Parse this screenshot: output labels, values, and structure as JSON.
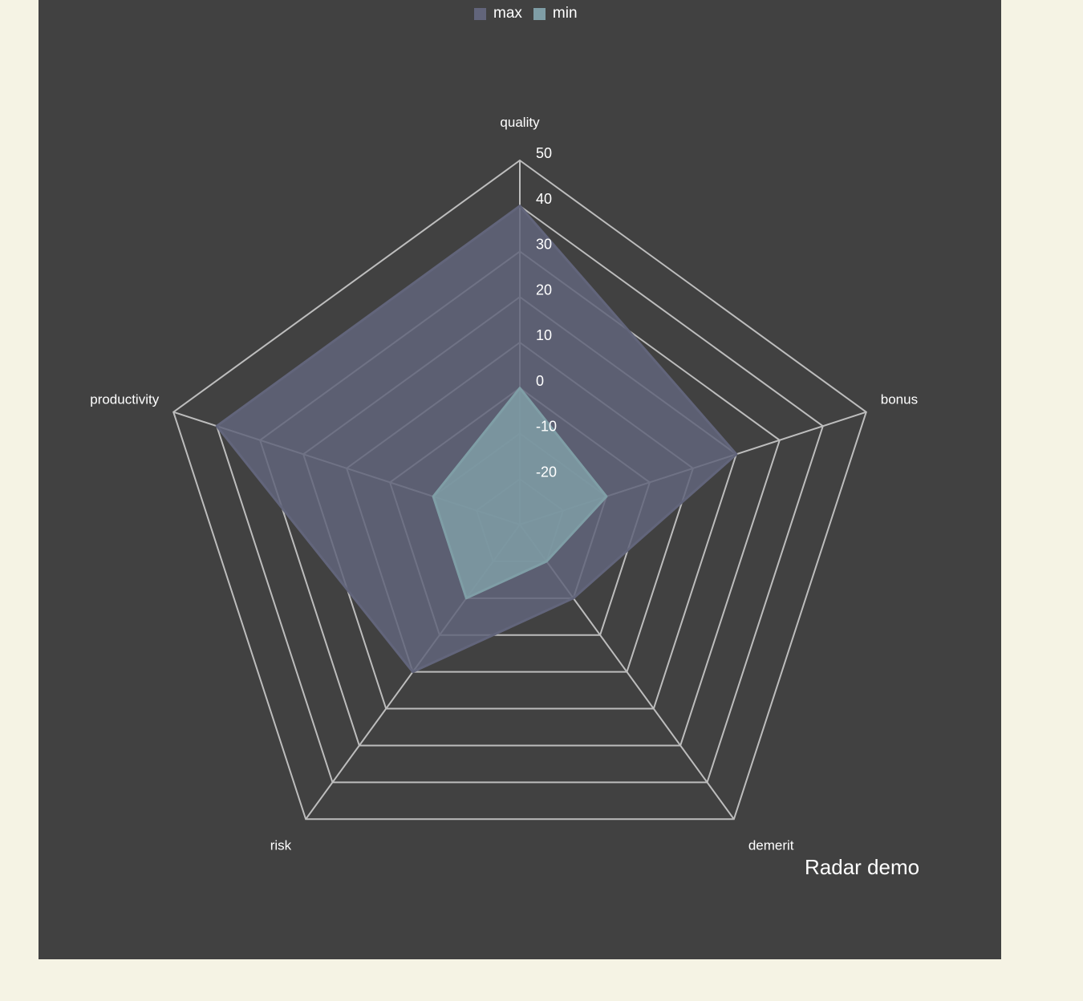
{
  "colors": {
    "page_background": "#f5f3e4",
    "panel_background": "#414141",
    "grid_line": "#bdbdbd",
    "max_series": "#62657b",
    "min_series": "#7f9ea6"
  },
  "legend": {
    "position": "top-center",
    "items": [
      {
        "label": "max",
        "color": "#62657b"
      },
      {
        "label": "min",
        "color": "#7f9ea6"
      }
    ]
  },
  "chart_data": {
    "type": "radar",
    "title": "Radar demo",
    "title_position": "bottom-right",
    "indicators": [
      "quality",
      "bonus",
      "demerit",
      "risk",
      "productivity"
    ],
    "radial_range": [
      -30,
      50
    ],
    "radial_ticks": [
      "50",
      "40",
      "30",
      "20",
      "10",
      "0",
      "-10",
      "-20"
    ],
    "series": [
      {
        "name": "max",
        "color": "#62657b",
        "values": [
          40,
          20,
          -10,
          10,
          40
        ]
      },
      {
        "name": "min",
        "color": "#7f9ea6",
        "values": [
          0,
          -10,
          -20,
          -10,
          -10
        ]
      }
    ]
  }
}
